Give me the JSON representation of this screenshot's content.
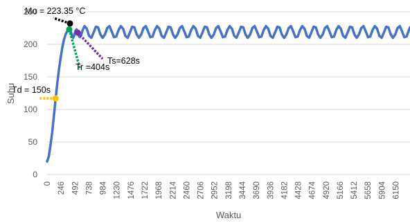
{
  "chart_data": {
    "type": "line",
    "title": "",
    "xlabel": "Waktu",
    "ylabel": "Suhu",
    "xlim": [
      0,
      6400
    ],
    "ylim": [
      0,
      250
    ],
    "y_ticks": [
      0,
      50,
      100,
      150,
      200,
      250
    ],
    "x_tick_labels": [
      "0",
      "246",
      "492",
      "738",
      "984",
      "1230",
      "1476",
      "1722",
      "1968",
      "2214",
      "2460",
      "2706",
      "2952",
      "3198",
      "3444",
      "3690",
      "3936",
      "4182",
      "4428",
      "4674",
      "4920",
      "5166",
      "5412",
      "5658",
      "5904",
      "6150"
    ],
    "grid": "horizontal",
    "legend": "none",
    "series": [
      {
        "color": "#4472c4",
        "x": [
          0,
          30,
          60,
          90,
          120,
          150,
          180,
          210,
          240,
          270,
          300,
          330,
          360,
          390,
          404,
          420,
          440,
          460,
          480,
          500,
          520,
          540,
          560,
          580,
          600,
          628,
          660,
          700,
          740,
          780,
          820,
          860,
          900,
          940,
          980,
          1020,
          1060,
          1100,
          1140,
          1180,
          1220,
          1260,
          1300,
          1340,
          1380,
          1420,
          1460,
          1500,
          1540,
          1580,
          1620,
          1660,
          1700,
          1740,
          1780,
          1820,
          1860,
          1900,
          1940,
          1980,
          2020,
          2060,
          2100,
          2140,
          2180,
          2220,
          2260,
          2300,
          2340,
          2380,
          2420,
          2460,
          2500,
          2540,
          2580,
          2620,
          2660,
          2700,
          2740,
          2780,
          2820,
          2860,
          2900,
          2940,
          2980,
          3020,
          3060,
          3100,
          3140,
          3180,
          3220,
          3260,
          3300,
          3340,
          3380,
          3420,
          3460,
          3500,
          3540,
          3580,
          3620,
          3660,
          3700,
          3740,
          3780,
          3820,
          3860,
          3900,
          3940,
          3980,
          4020,
          4060,
          4100,
          4140,
          4180,
          4220,
          4260,
          4300,
          4340,
          4380,
          4420,
          4460,
          4500,
          4540,
          4580,
          4620,
          4660,
          4700,
          4740,
          4780,
          4820,
          4860,
          4900,
          4940,
          4980,
          5020,
          5060,
          5100,
          5140,
          5180,
          5220,
          5260,
          5300,
          5340,
          5380,
          5420,
          5460,
          5500,
          5540,
          5580,
          5620,
          5660,
          5700,
          5740,
          5780,
          5820,
          5860,
          5900,
          5940,
          5980,
          6020,
          6060,
          6100,
          6140,
          6180,
          6220,
          6260,
          6300,
          6340,
          6380,
          6400
        ],
        "y": [
          20,
          28,
          45,
          65,
          90,
          116,
          140,
          162,
          180,
          196,
          208,
          216,
          221,
          223,
          222,
          219,
          213,
          210,
          214,
          221,
          223,
          219,
          213,
          211,
          214,
          222,
          228,
          224,
          213,
          210,
          218,
          227,
          226,
          215,
          210,
          215,
          225,
          228,
          220,
          211,
          212,
          222,
          228,
          224,
          213,
          210,
          218,
          227,
          226,
          215,
          210,
          215,
          225,
          228,
          220,
          211,
          212,
          222,
          228,
          224,
          213,
          210,
          218,
          227,
          226,
          215,
          210,
          215,
          225,
          228,
          220,
          211,
          212,
          222,
          228,
          224,
          213,
          210,
          218,
          227,
          226,
          215,
          210,
          215,
          225,
          228,
          220,
          211,
          212,
          222,
          228,
          224,
          213,
          210,
          218,
          227,
          226,
          215,
          210,
          215,
          225,
          228,
          220,
          211,
          212,
          222,
          228,
          224,
          213,
          210,
          218,
          227,
          226,
          215,
          210,
          215,
          225,
          228,
          220,
          211,
          212,
          222,
          228,
          224,
          213,
          210,
          218,
          227,
          226,
          215,
          210,
          215,
          225,
          228,
          220,
          211,
          212,
          222,
          228,
          224,
          213,
          210,
          218,
          227,
          226,
          215,
          210,
          215,
          225,
          228,
          220,
          211,
          212,
          222,
          228,
          224,
          213,
          210,
          218,
          227,
          226,
          215,
          210,
          215,
          225,
          228,
          220,
          211,
          212,
          222,
          226
        ]
      }
    ],
    "annotations": [
      {
        "text": "Mo = 223.35 °C",
        "x": 404,
        "y": 232,
        "color": "#000000"
      },
      {
        "text": "Tr =404s",
        "x": 390,
        "y": 223,
        "color": "#00a550"
      },
      {
        "text": "Ts=628s",
        "x": 540,
        "y": 218,
        "color": "#7030a0"
      },
      {
        "text": "Td = 150s",
        "x": 150,
        "y": 117,
        "color": "#ffc000"
      }
    ]
  }
}
